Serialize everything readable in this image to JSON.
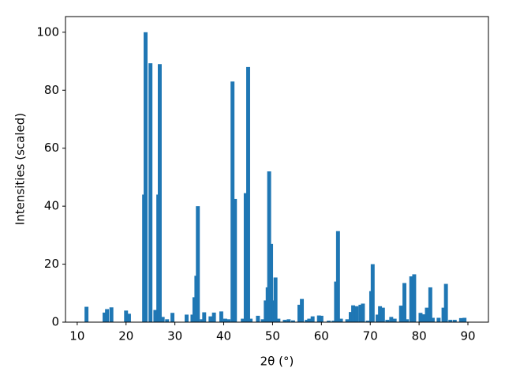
{
  "chart_data": {
    "type": "bar",
    "xlabel": "2θ (°)",
    "ylabel": "Intensities (scaled)",
    "x": [
      11.9,
      15.6,
      16.1,
      17.0,
      20.0,
      20.6,
      23.7,
      24.0,
      25.0,
      26.0,
      26.6,
      26.9,
      27.5,
      28.4,
      29.5,
      32.4,
      33.6,
      34.0,
      34.4,
      34.7,
      35.5,
      36.0,
      37.3,
      38.0,
      39.5,
      40.3,
      41.0,
      41.8,
      42.3,
      43.9,
      44.5,
      45.0,
      45.5,
      47.0,
      48.0,
      48.6,
      49.0,
      49.3,
      49.7,
      50.2,
      50.6,
      51.2,
      52.5,
      53.3,
      54.2,
      55.5,
      56.0,
      57.0,
      57.5,
      58.2,
      59.5,
      60.0,
      61.5,
      62.5,
      63.0,
      63.4,
      64.0,
      65.3,
      66.0,
      66.5,
      67.2,
      68.0,
      68.5,
      69.5,
      70.2,
      70.5,
      71.5,
      72.0,
      72.6,
      73.5,
      74.3,
      75.0,
      76.3,
      77.0,
      77.5,
      78.4,
      79.0,
      80.3,
      81.0,
      81.6,
      82.3,
      82.8,
      84.0,
      85.0,
      85.5,
      86.4,
      87.3,
      88.6,
      89.3
    ],
    "values": [
      5.3,
      3.3,
      4.5,
      5.1,
      4.0,
      2.9,
      44,
      100,
      89.3,
      4.2,
      44,
      89,
      1.8,
      1,
      3.2,
      2.6,
      2.6,
      8.6,
      16,
      40,
      1,
      3.4,
      2,
      3.3,
      3.7,
      1.2,
      1,
      83,
      42.5,
      1.2,
      44.5,
      88,
      1.2,
      2.2,
      1,
      7.5,
      12,
      52,
      27,
      7.5,
      15.4,
      1.2,
      0.8,
      1,
      0.6,
      6,
      8,
      0.8,
      1.2,
      2,
      2.3,
      2.2,
      0.5,
      0.5,
      14,
      31.4,
      1.2,
      1,
      3.5,
      5.8,
      5.5,
      6,
      6.4,
      0.5,
      10.7,
      20,
      2.6,
      5.5,
      5,
      0.8,
      1.8,
      1.2,
      5.7,
      13.5,
      1,
      15.8,
      16.5,
      3.2,
      2.7,
      5,
      12,
      1.5,
      1.5,
      5,
      13.2,
      0.8,
      0.8,
      1.4,
      1.5
    ],
    "color": "#1f77b4",
    "xlim": [
      7.6,
      94.2
    ],
    "ylim": [
      0,
      105.4
    ],
    "xticks": [
      10,
      20,
      30,
      40,
      50,
      60,
      70,
      80,
      90
    ],
    "yticks": [
      0,
      20,
      40,
      60,
      80,
      100
    ]
  }
}
